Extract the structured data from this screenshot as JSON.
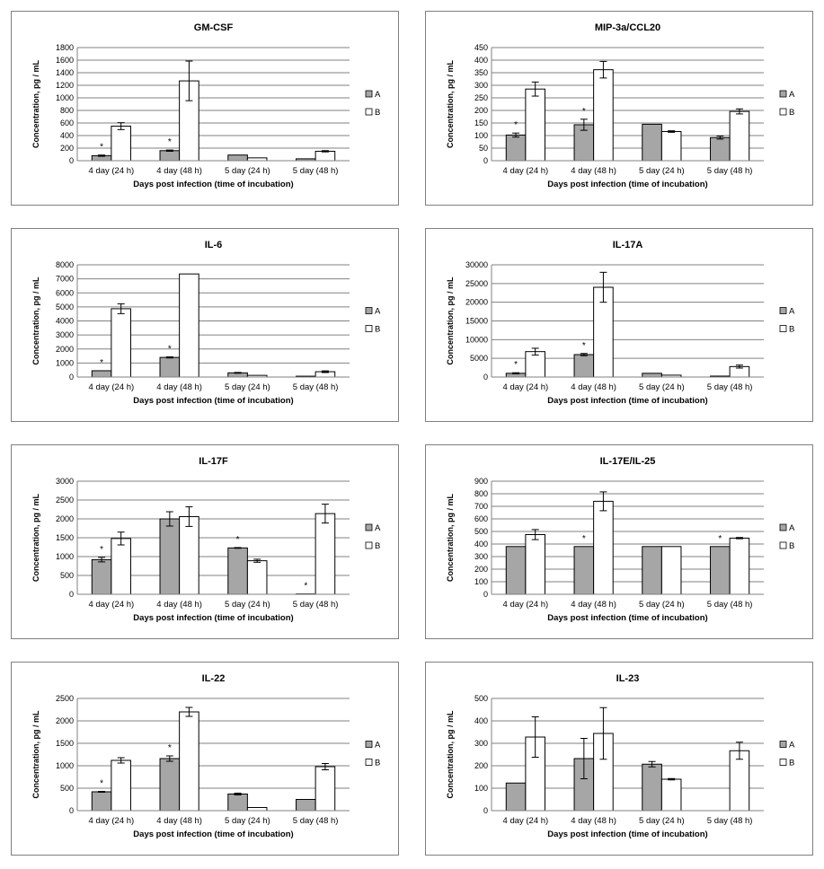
{
  "colors": {
    "series_a": "#a6a6a6",
    "series_b": "#ffffff",
    "outline": "#000000",
    "grid": "#808080",
    "panel_border": "#808080"
  },
  "chart_data": [
    {
      "type": "bar",
      "title": "GM-CSF",
      "xlabel": "Days post infection (time of incubation)",
      "ylabel": "Concentration, pg / mL",
      "categories": [
        "4 day (24 h)",
        "4 day (48 h)",
        "5 day (24 h)",
        "5 day (48 h)"
      ],
      "ylim": [
        0,
        1800
      ],
      "yticks": [
        0,
        200,
        400,
        600,
        800,
        1000,
        1200,
        1400,
        1600,
        1800
      ],
      "grid": true,
      "legend": "right",
      "series": [
        {
          "name": "A",
          "values": [
            80,
            160,
            90,
            30
          ],
          "errors": [
            10,
            10,
            0,
            0
          ]
        },
        {
          "name": "B",
          "values": [
            550,
            1270,
            45,
            150
          ],
          "errors": [
            55,
            315,
            0,
            10
          ]
        }
      ],
      "significance": [
        true,
        true,
        false,
        false
      ]
    },
    {
      "type": "bar",
      "title": "MIP-3a/CCL20",
      "xlabel": "Days post infection (time of incubation)",
      "ylabel": "Concentration, pg / mL",
      "categories": [
        "4 day (24 h)",
        "4 day (48 h)",
        "5 day (24 h)",
        "5 day (48 h)"
      ],
      "ylim": [
        0,
        450
      ],
      "yticks": [
        0,
        50,
        100,
        150,
        200,
        250,
        300,
        350,
        400,
        450
      ],
      "grid": true,
      "legend": "right",
      "series": [
        {
          "name": "A",
          "values": [
            102,
            143,
            145,
            92
          ],
          "errors": [
            8,
            22,
            0,
            6
          ]
        },
        {
          "name": "B",
          "values": [
            285,
            362,
            116,
            196
          ],
          "errors": [
            28,
            33,
            3,
            10
          ]
        }
      ],
      "significance": [
        true,
        true,
        false,
        false
      ]
    },
    {
      "type": "bar",
      "title": "IL-6",
      "xlabel": "Days post infection (time of incubation)",
      "ylabel": "Concentration, pg / mL",
      "categories": [
        "4 day (24 h)",
        "4 day (48 h)",
        "5 day (24 h)",
        "5 day (48 h)"
      ],
      "ylim": [
        0,
        8000
      ],
      "yticks": [
        0,
        1000,
        2000,
        3000,
        4000,
        5000,
        6000,
        7000,
        8000
      ],
      "grid": true,
      "legend": "right",
      "series": [
        {
          "name": "A",
          "values": [
            450,
            1400,
            300,
            60
          ],
          "errors": [
            0,
            40,
            30,
            0
          ]
        },
        {
          "name": "B",
          "values": [
            4870,
            7350,
            120,
            380
          ],
          "errors": [
            350,
            0,
            0,
            60
          ]
        }
      ],
      "significance": [
        true,
        true,
        false,
        false
      ]
    },
    {
      "type": "bar",
      "title": "IL-17A",
      "xlabel": "Days post infection (time of incubation)",
      "ylabel": "Concentration, pg / mL",
      "categories": [
        "4 day (24 h)",
        "4 day (48 h)",
        "5 day (24 h)",
        "5 day (48 h)"
      ],
      "ylim": [
        0,
        30000
      ],
      "yticks": [
        0,
        5000,
        10000,
        15000,
        20000,
        25000,
        30000
      ],
      "grid": true,
      "legend": "right",
      "series": [
        {
          "name": "A",
          "values": [
            1000,
            6000,
            1000,
            250
          ],
          "errors": [
            150,
            300,
            0,
            0
          ]
        },
        {
          "name": "B",
          "values": [
            6800,
            24000,
            500,
            2800
          ],
          "errors": [
            900,
            4000,
            0,
            400
          ]
        }
      ],
      "significance": [
        true,
        true,
        false,
        false
      ]
    },
    {
      "type": "bar",
      "title": "IL-17F",
      "xlabel": "Days post infection (time of incubation)",
      "ylabel": "Concentration, pg / mL",
      "categories": [
        "4 day (24 h)",
        "4 day (48 h)",
        "5 day (24 h)",
        "5 day (48 h)"
      ],
      "ylim": [
        0,
        3000
      ],
      "yticks": [
        0,
        500,
        1000,
        1500,
        2000,
        2500,
        3000
      ],
      "grid": true,
      "legend": "right",
      "series": [
        {
          "name": "A",
          "values": [
            920,
            2000,
            1230,
            10
          ],
          "errors": [
            60,
            190,
            10,
            0
          ]
        },
        {
          "name": "B",
          "values": [
            1480,
            2060,
            890,
            2140
          ],
          "errors": [
            170,
            260,
            40,
            250
          ]
        }
      ],
      "significance": [
        true,
        false,
        true,
        true
      ]
    },
    {
      "type": "bar",
      "title": "IL-17E/IL-25",
      "xlabel": "Days post infection (time of incubation)",
      "ylabel": "Concentration, pg / mL",
      "categories": [
        "4 day (24 h)",
        "4 day (48 h)",
        "5 day (24 h)",
        "5 day (48 h)"
      ],
      "ylim": [
        0,
        900
      ],
      "yticks": [
        0,
        100,
        200,
        300,
        400,
        500,
        600,
        700,
        800,
        900
      ],
      "grid": true,
      "legend": "right",
      "series": [
        {
          "name": "A",
          "values": [
            380,
            380,
            380,
            380
          ],
          "errors": [
            0,
            0,
            0,
            0
          ]
        },
        {
          "name": "B",
          "values": [
            475,
            740,
            380,
            447
          ],
          "errors": [
            40,
            75,
            0,
            5
          ]
        }
      ],
      "significance": [
        false,
        true,
        false,
        true
      ]
    },
    {
      "type": "bar",
      "title": "IL-22",
      "xlabel": "Days post infection (time of incubation)",
      "ylabel": "Concentration, pg / mL",
      "categories": [
        "4 day (24 h)",
        "4 day (48 h)",
        "5 day (24 h)",
        "5 day (48 h)"
      ],
      "ylim": [
        0,
        2500
      ],
      "yticks": [
        0,
        500,
        1000,
        1500,
        2000,
        2500
      ],
      "grid": true,
      "legend": "right",
      "series": [
        {
          "name": "A",
          "values": [
            420,
            1160,
            370,
            250
          ],
          "errors": [
            10,
            60,
            20,
            0
          ]
        },
        {
          "name": "B",
          "values": [
            1120,
            2200,
            70,
            980
          ],
          "errors": [
            60,
            100,
            0,
            70
          ]
        }
      ],
      "significance": [
        true,
        true,
        false,
        false
      ]
    },
    {
      "type": "bar",
      "title": "IL-23",
      "xlabel": "Days post infection (time of incubation)",
      "ylabel": "Concentration, pg / mL",
      "categories": [
        "4 day (24 h)",
        "4 day (48 h)",
        "5 day (24 h)",
        "5 day (48 h)"
      ],
      "ylim": [
        0,
        500
      ],
      "yticks": [
        0,
        100,
        200,
        300,
        400,
        500
      ],
      "grid": true,
      "legend": "right",
      "series": [
        {
          "name": "A",
          "values": [
            123,
            232,
            207,
            0
          ],
          "errors": [
            0,
            90,
            12,
            0
          ]
        },
        {
          "name": "B",
          "values": [
            328,
            344,
            140,
            267
          ],
          "errors": [
            90,
            115,
            3,
            38
          ]
        }
      ],
      "significance": [
        false,
        false,
        false,
        false
      ]
    }
  ]
}
